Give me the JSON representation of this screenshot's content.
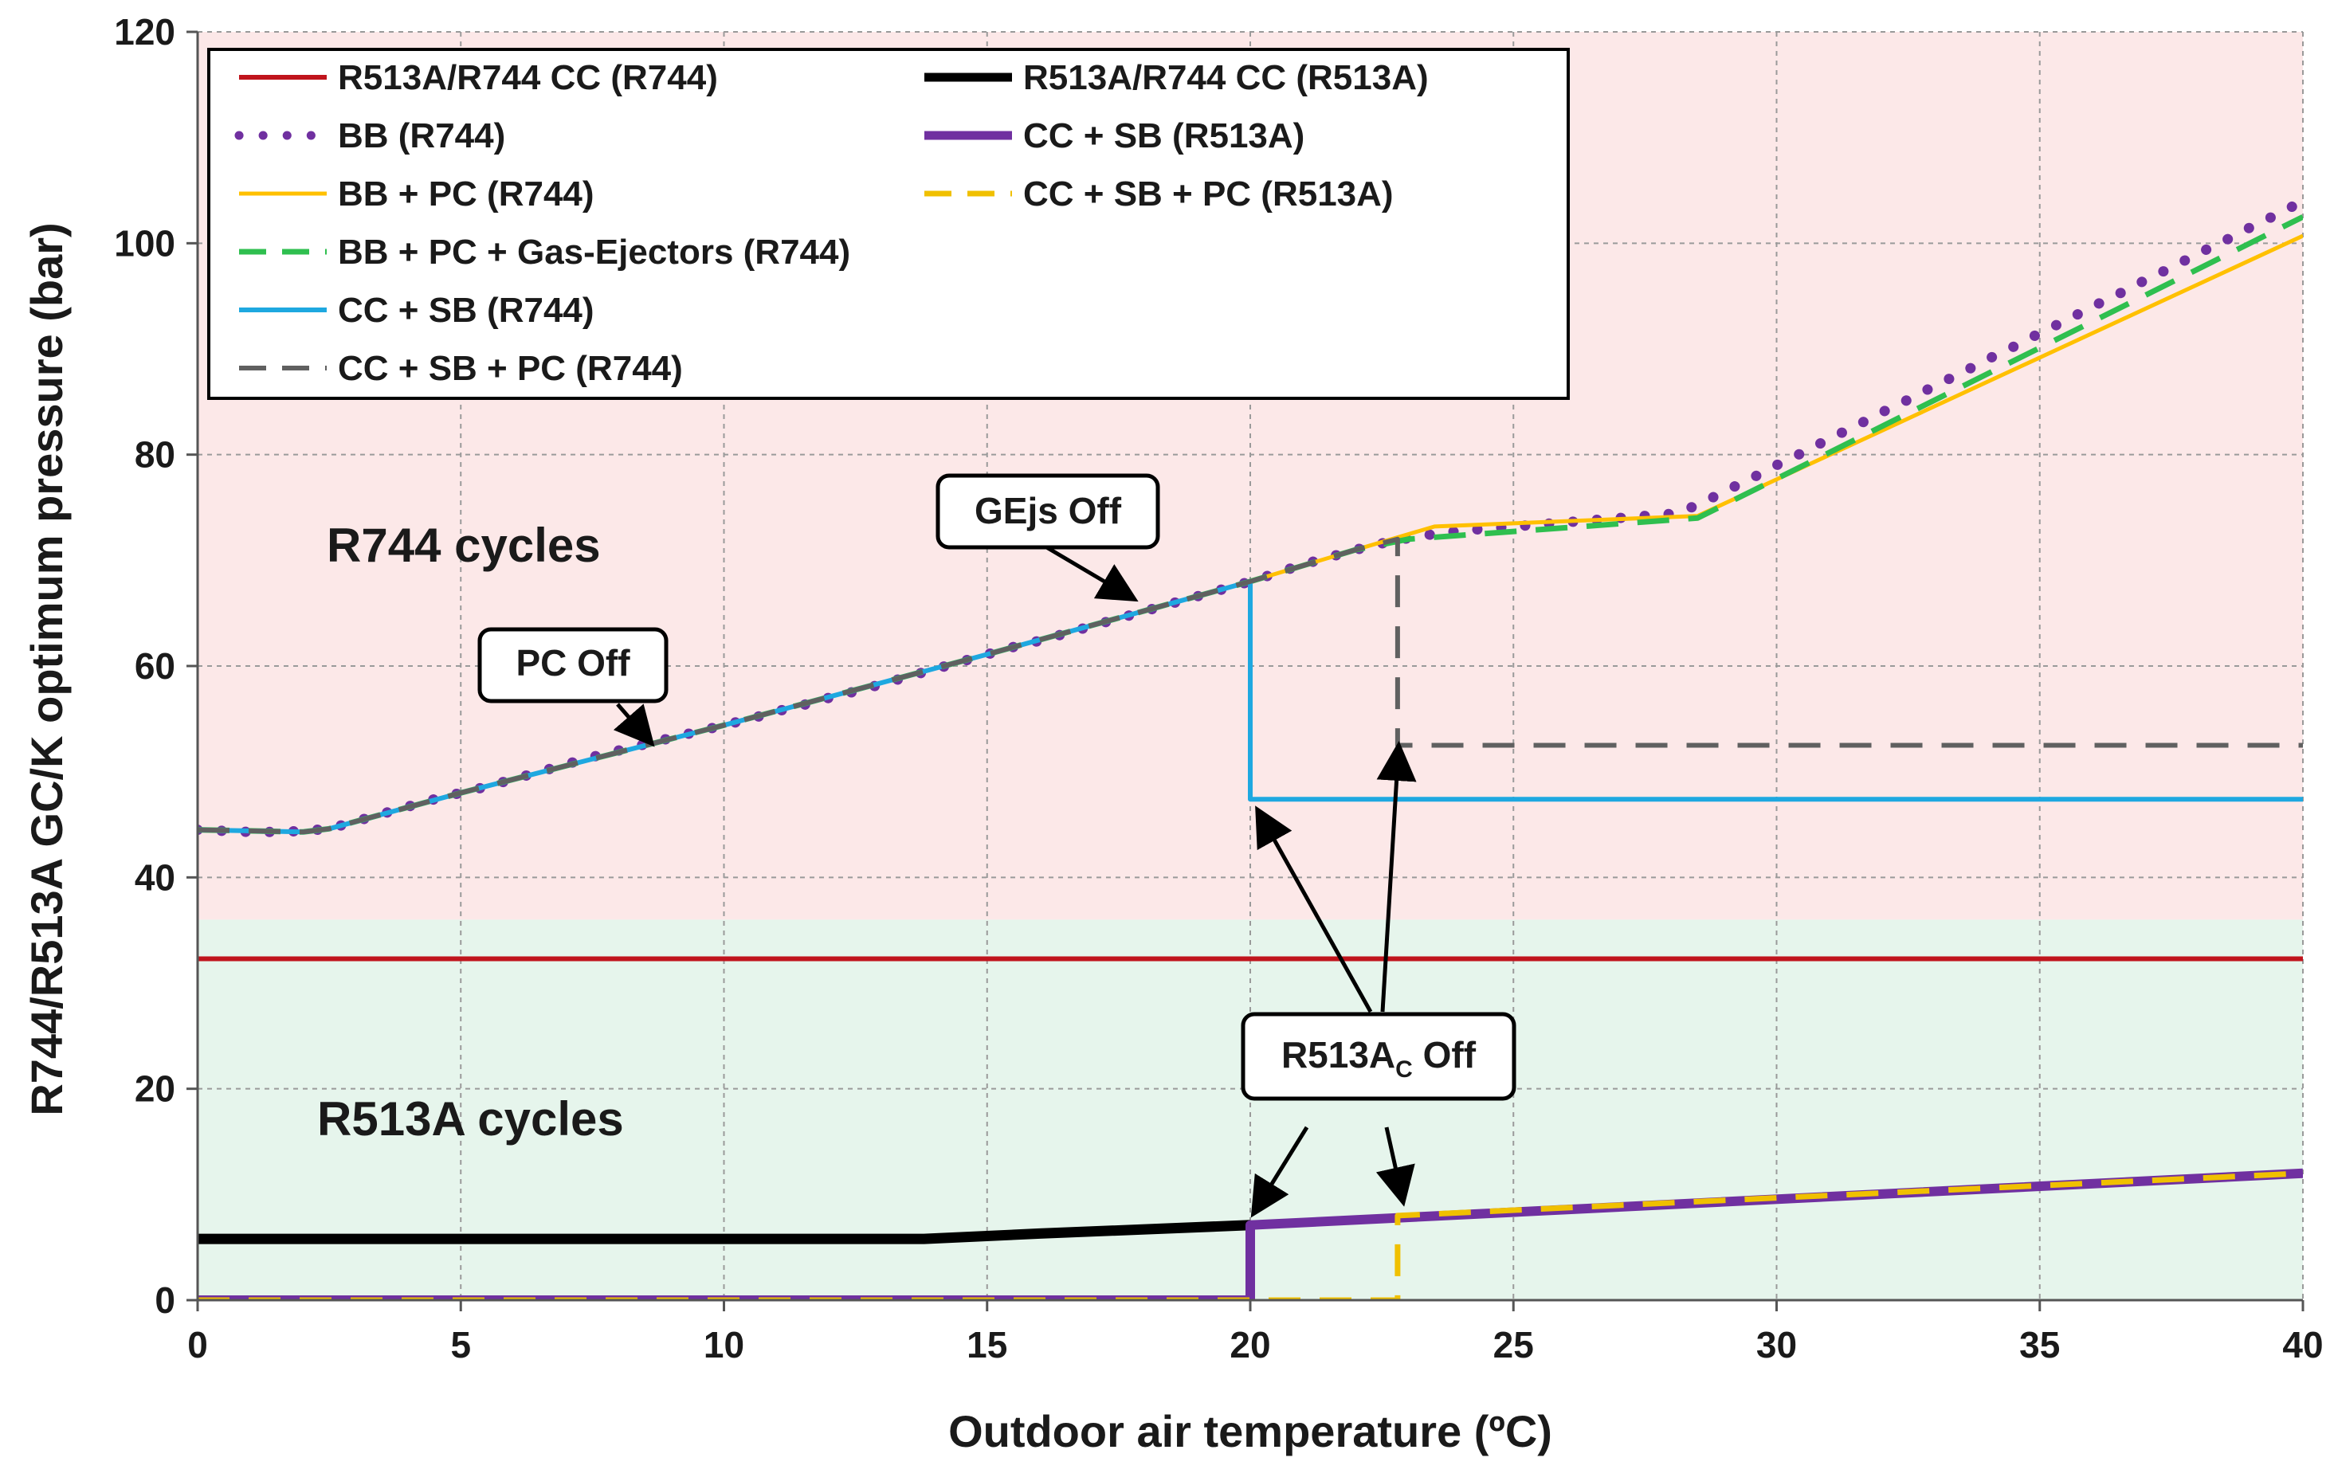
{
  "chart_data": {
    "type": "line",
    "title": "",
    "xlabel": "Outdoor air temperature (ºC)",
    "ylabel": "R744/R513A GC/K optimum pressure (bar)",
    "xlim": [
      0,
      40
    ],
    "ylim": [
      0,
      120
    ],
    "xticks": [
      0,
      5,
      10,
      15,
      20,
      25,
      30,
      35,
      40
    ],
    "yticks": [
      0,
      20,
      40,
      60,
      80,
      100,
      120
    ],
    "grid": true,
    "regions": [
      {
        "name": "R744 cycles",
        "y_from": 36,
        "y_to": 120,
        "color": "#fce8e8"
      },
      {
        "name": "R513A cycles",
        "y_from": 0,
        "y_to": 36,
        "color": "#e6f5ec"
      }
    ],
    "region_labels": [
      "R744 cycles",
      "R513A cycles"
    ],
    "legend_position": "top-left",
    "series": [
      {
        "name": "R513A/R744 CC (R744)",
        "color": "#c0141c",
        "style": "solid",
        "width": 6,
        "x": [
          0,
          40
        ],
        "y": [
          32.3,
          32.3
        ]
      },
      {
        "name": "R513A/R744 CC (R513A)",
        "color": "#000000",
        "style": "solid",
        "width": 13,
        "x": [
          0,
          13.8,
          16,
          18,
          20
        ],
        "y": [
          5.8,
          5.8,
          6.3,
          6.7,
          7.1
        ]
      },
      {
        "name": "BB (R744)",
        "color": "#7030a0",
        "style": "dotted",
        "width": 13,
        "x": [
          0,
          0.5,
          1,
          1.5,
          2,
          2.5,
          3,
          3.5,
          4,
          4.5,
          5,
          5.5,
          6,
          6.5,
          7,
          7.5,
          8,
          8.5,
          9,
          9.5,
          10,
          10.5,
          11,
          11.5,
          12,
          12.5,
          13,
          13.5,
          14,
          14.5,
          15,
          15.5,
          16,
          16.5,
          17,
          17.5,
          18,
          18.5,
          19,
          19.5,
          20,
          20.5,
          21,
          21.5,
          22,
          22.5,
          23,
          23.5,
          24,
          24.5,
          25,
          25.5,
          26,
          26.5,
          27,
          27.5,
          28,
          28.5,
          29,
          29.5,
          30,
          30.5,
          31,
          31.5,
          32,
          32.5,
          33,
          33.5,
          34,
          34.5,
          35,
          35.5,
          36,
          36.5,
          37,
          37.5,
          38,
          38.5,
          39,
          39.5,
          40
        ],
        "y": [
          44.5,
          44.4,
          44.3,
          44.3,
          44.4,
          44.6,
          45.3,
          46.0,
          46.7,
          47.4,
          48.0,
          48.6,
          49.3,
          50.0,
          50.7,
          51.4,
          52.0,
          52.6,
          53.2,
          53.8,
          54.4,
          55.0,
          55.7,
          56.3,
          57.0,
          57.6,
          58.3,
          59.0,
          59.7,
          60.4,
          61.1,
          61.8,
          62.4,
          63.1,
          63.8,
          64.5,
          65.2,
          65.9,
          66.6,
          67.3,
          68.0,
          68.8,
          69.6,
          70.3,
          71.0,
          71.6,
          72.1,
          72.5,
          72.8,
          73.0,
          73.2,
          73.4,
          73.6,
          73.8,
          74.0,
          74.2,
          74.4,
          75.2,
          76.5,
          77.7,
          79.0,
          80.2,
          81.5,
          82.7,
          84.0,
          85.2,
          86.5,
          87.7,
          89.0,
          90.2,
          91.5,
          92.7,
          94.0,
          95.2,
          96.5,
          97.7,
          99.0,
          100.2,
          101.5,
          102.7,
          104.0
        ]
      },
      {
        "name": "CC + SB (R513A)",
        "color": "#7030a0",
        "style": "solid",
        "width": 12,
        "x": [
          0,
          20,
          20,
          40
        ],
        "y": [
          0,
          0,
          7.1,
          12.0
        ]
      },
      {
        "name": "BB + PC (R744)",
        "color": "#ffc000",
        "style": "solid",
        "width": 5,
        "x": [
          0,
          2,
          2.5,
          5,
          10,
          15,
          20,
          22,
          23.5,
          28.5,
          40
        ],
        "y": [
          44.5,
          44.3,
          44.6,
          48.0,
          54.4,
          61.1,
          68.0,
          71.0,
          73.2,
          74.2,
          100.7
        ]
      },
      {
        "name": "CC + SB + PC (R513A)",
        "color": "#f0c000",
        "style": "dashed",
        "width": 7,
        "x": [
          0,
          22.8,
          22.8,
          40
        ],
        "y": [
          0,
          0,
          8.0,
          12.0
        ]
      },
      {
        "name": "BB + PC + Gas-Ejectors (R744)",
        "color": "#2fbf4f",
        "style": "dashed",
        "width": 7,
        "x": [
          0,
          2,
          2.5,
          5,
          10,
          15,
          20,
          22,
          23,
          28.5,
          40
        ],
        "y": [
          44.5,
          44.3,
          44.6,
          48.0,
          54.4,
          61.1,
          68.0,
          71.0,
          72.0,
          74.0,
          102.5
        ]
      },
      {
        "name": "CC + SB (R744)",
        "color": "#1ea8e0",
        "style": "solid",
        "width": 6,
        "x": [
          0,
          2,
          2.5,
          5,
          10,
          15,
          20,
          20,
          40
        ],
        "y": [
          44.5,
          44.3,
          44.6,
          48.0,
          54.4,
          61.1,
          68.0,
          47.4,
          47.4
        ]
      },
      {
        "name": "CC + SB + PC (R744)",
        "color": "#606060",
        "style": "dashed",
        "width": 6,
        "x": [
          0,
          2,
          2.5,
          5,
          10,
          15,
          20,
          22,
          22.8,
          22.8,
          40
        ],
        "y": [
          44.5,
          44.3,
          44.6,
          48.0,
          54.4,
          61.1,
          68.0,
          71.0,
          72.0,
          52.5,
          52.5
        ]
      }
    ],
    "annotations": [
      {
        "text": "PC Off",
        "arrow_to": [
          8.8,
          52.4
        ]
      },
      {
        "text": "GEjs Off",
        "arrow_to": [
          18.0,
          65.5
        ]
      },
      {
        "text": "R513A",
        "subscript": "C",
        "suffix": " Off",
        "arrows_to": [
          [
            20.2,
            47.4
          ],
          [
            22.8,
            52.5
          ],
          [
            20.2,
            7.5
          ],
          [
            22.9,
            8.8
          ]
        ]
      }
    ]
  }
}
